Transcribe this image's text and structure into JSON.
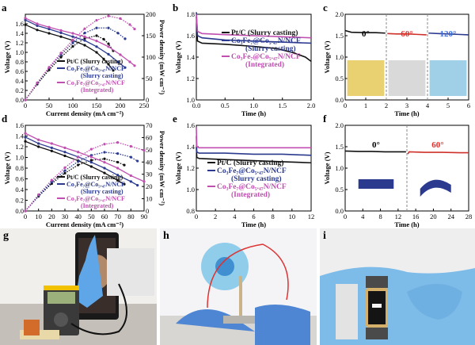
{
  "colors": {
    "black": "#111111",
    "blue": "#2b3a8f",
    "magenta": "#c04fb0",
    "red_text": "#e0302a",
    "blue_text": "#3a6ad8"
  },
  "panels": {
    "a": {
      "letter": "a"
    },
    "b": {
      "letter": "b"
    },
    "c": {
      "letter": "c"
    },
    "d": {
      "letter": "d"
    },
    "e": {
      "letter": "e"
    },
    "f": {
      "letter": "f"
    },
    "g": {
      "letter": "g"
    },
    "h": {
      "letter": "h"
    },
    "i": {
      "letter": "i"
    }
  },
  "chart_data": [
    {
      "id": "a",
      "type": "line",
      "xlabel": "Current density (mA cm⁻²)",
      "ylabel": "Voltage (V)",
      "y2label": "Power density (mW cm⁻²)",
      "xlim": [
        0,
        250
      ],
      "ylim": [
        0,
        1.8
      ],
      "y2lim": [
        0,
        200
      ],
      "xticks": [
        "0",
        "50",
        "100",
        "150",
        "200",
        "250"
      ],
      "yticks": [
        "0.0",
        "0.2",
        "0.4",
        "0.6",
        "0.8",
        "1.0",
        "1.2",
        "1.4",
        "1.6"
      ],
      "y2ticks": [
        "0",
        "50",
        "100",
        "150",
        "200"
      ],
      "legend": [
        "Pt/C (Slurry casting)",
        "Co₃Fe₇@Co₅.₄₇N/NCF",
        "(Slurry casting)",
        "Co₃Fe₇@Co₅.₄₇N/NCF",
        "(Integrated)"
      ],
      "series": [
        {
          "color": "black",
          "x": [
            0,
            25,
            50,
            75,
            100,
            125,
            150,
            165,
            175,
            185
          ],
          "voltage": [
            1.58,
            1.47,
            1.4,
            1.33,
            1.25,
            1.15,
            1.0,
            0.86,
            0.75,
            0.62
          ]
        },
        {
          "color": "blue",
          "x": [
            0,
            25,
            50,
            75,
            100,
            125,
            150,
            175,
            195,
            210
          ],
          "voltage": [
            1.68,
            1.56,
            1.49,
            1.41,
            1.33,
            1.25,
            1.12,
            0.96,
            0.8,
            0.68
          ]
        },
        {
          "color": "magenta",
          "x": [
            0,
            25,
            50,
            75,
            100,
            125,
            150,
            175,
            200,
            220,
            230
          ],
          "voltage": [
            1.72,
            1.6,
            1.53,
            1.46,
            1.4,
            1.33,
            1.24,
            1.12,
            0.95,
            0.8,
            0.72
          ]
        }
      ]
    },
    {
      "id": "b",
      "type": "line",
      "xlabel": "Time (h)",
      "ylabel": "Voltage (V)",
      "xlim": [
        0,
        2.0
      ],
      "ylim": [
        1.0,
        1.8
      ],
      "xticks": [
        "0.0",
        "0.5",
        "1.0",
        "1.5",
        "2.0"
      ],
      "yticks": [
        "1.0",
        "1.2",
        "1.4",
        "1.6",
        "1.8"
      ],
      "legend": [
        "Pt/C (Slurry casting)",
        "Co₃Fe₇@Co₅.₄₇N/NCF",
        "(Slurry casting)",
        "Co₃Fe₇@Co₅.₄₇N/NCF",
        "(Integrated)"
      ],
      "series": [
        {
          "color": "black",
          "x": [
            0,
            0.02,
            0.1,
            0.5,
            1.0,
            1.4,
            1.7,
            1.9,
            2.0
          ],
          "y": [
            1.78,
            1.55,
            1.53,
            1.52,
            1.5,
            1.48,
            1.44,
            1.4,
            1.36
          ]
        },
        {
          "color": "blue",
          "x": [
            0,
            0.02,
            0.1,
            0.5,
            1.0,
            1.5,
            2.0
          ],
          "y": [
            1.82,
            1.6,
            1.58,
            1.56,
            1.55,
            1.54,
            1.53
          ]
        },
        {
          "color": "magenta",
          "x": [
            0,
            0.02,
            0.1,
            0.5,
            1.0,
            1.5,
            2.0
          ],
          "y": [
            1.8,
            1.64,
            1.62,
            1.61,
            1.6,
            1.59,
            1.58
          ]
        }
      ]
    },
    {
      "id": "c",
      "type": "line",
      "xlabel": "Time (h)",
      "ylabel": "Voltage (V)",
      "xlim": [
        0,
        6
      ],
      "ylim": [
        0.0,
        2.0
      ],
      "xticks": [
        "0",
        "1",
        "2",
        "3",
        "4",
        "5",
        "6"
      ],
      "yticks": [
        "0.0",
        "0.5",
        "1.0",
        "1.5",
        "2.0"
      ],
      "annotations": [
        "0°",
        "60°",
        "120°"
      ],
      "series": [
        {
          "color": "black",
          "x": [
            0,
            0.3,
            1,
            1.5,
            1.95
          ],
          "y": [
            1.62,
            1.58,
            1.57,
            1.57,
            1.56
          ]
        },
        {
          "color": "red",
          "x": [
            2.05,
            2.5,
            3,
            3.5,
            3.95
          ],
          "y": [
            1.55,
            1.54,
            1.54,
            1.53,
            1.52
          ]
        },
        {
          "color": "blue",
          "x": [
            4.05,
            4.5,
            5,
            5.5,
            6
          ],
          "y": [
            1.56,
            1.55,
            1.54,
            1.53,
            1.52
          ]
        }
      ],
      "separators": [
        2,
        4
      ]
    },
    {
      "id": "d",
      "type": "line",
      "xlabel": "Current density (mA cm⁻²)",
      "ylabel": "Voltage (V)",
      "y2label": "Power density (mW cm⁻²)",
      "xlim": [
        0,
        90
      ],
      "ylim": [
        0,
        1.6
      ],
      "y2lim": [
        0,
        70
      ],
      "xticks": [
        "0",
        "10",
        "20",
        "30",
        "40",
        "50",
        "60",
        "70",
        "80",
        "90"
      ],
      "yticks": [
        "0.0",
        "0.2",
        "0.4",
        "0.6",
        "0.8",
        "1.0",
        "1.2",
        "1.4",
        "1.6"
      ],
      "y2ticks": [
        "0",
        "10",
        "20",
        "30",
        "40",
        "50",
        "60",
        "70"
      ],
      "legend": [
        "Pt/C (Slurry casting)",
        "Co₃Fe₇@Co₅.₄₇N/NCF",
        "(Slurry casting)",
        "Co₃Fe₇@Co₅.₄₇N/NCF",
        "(Integrated)"
      ],
      "series": [
        {
          "color": "black",
          "x": [
            0,
            10,
            20,
            30,
            40,
            50,
            60,
            70,
            75
          ],
          "voltage": [
            1.3,
            1.2,
            1.12,
            1.03,
            0.94,
            0.83,
            0.71,
            0.57,
            0.5
          ]
        },
        {
          "color": "blue",
          "x": [
            0,
            10,
            20,
            30,
            40,
            50,
            60,
            70,
            80,
            85
          ],
          "voltage": [
            1.38,
            1.26,
            1.18,
            1.1,
            1.01,
            0.91,
            0.8,
            0.67,
            0.55,
            0.48
          ]
        },
        {
          "color": "magenta",
          "x": [
            0,
            10,
            20,
            30,
            40,
            50,
            60,
            70,
            80,
            90
          ],
          "voltage": [
            1.45,
            1.33,
            1.26,
            1.18,
            1.1,
            1.01,
            0.91,
            0.8,
            0.66,
            0.55
          ]
        }
      ]
    },
    {
      "id": "e",
      "type": "line",
      "xlabel": "Time (h)",
      "ylabel": "Voltage (V)",
      "xlim": [
        0,
        12
      ],
      "ylim": [
        0.8,
        1.6
      ],
      "xticks": [
        "0",
        "2",
        "4",
        "6",
        "8",
        "10",
        "12"
      ],
      "yticks": [
        "0.8",
        "1.0",
        "1.2",
        "1.4",
        "1.6"
      ],
      "legend": [
        "Pt/C (Slurry casting)",
        "Co₃Fe₇@Co₅.₄₇N/NCF",
        "(Slurry casting)",
        "Co₃Fe₇@Co₅.₄₇N/NCF",
        "(Integrated)"
      ],
      "series": [
        {
          "color": "black",
          "x": [
            0,
            0.05,
            0.3,
            3,
            6,
            9,
            12
          ],
          "y": [
            1.4,
            1.3,
            1.29,
            1.28,
            1.27,
            1.26,
            1.25
          ]
        },
        {
          "color": "blue",
          "x": [
            0,
            0.05,
            0.3,
            3,
            6,
            9,
            12
          ],
          "y": [
            1.5,
            1.35,
            1.34,
            1.34,
            1.33,
            1.33,
            1.32
          ]
        },
        {
          "color": "magenta",
          "x": [
            0,
            0.05,
            0.3,
            3,
            6,
            9,
            12
          ],
          "y": [
            1.58,
            1.4,
            1.39,
            1.39,
            1.39,
            1.39,
            1.39
          ]
        }
      ]
    },
    {
      "id": "f",
      "type": "line",
      "xlabel": "Time (h)",
      "ylabel": "Voltage (V)",
      "xlim": [
        0,
        28
      ],
      "ylim": [
        0.0,
        2.0
      ],
      "xticks": [
        "0",
        "4",
        "8",
        "12",
        "16",
        "20",
        "24",
        "28"
      ],
      "yticks": [
        "0.0",
        "0.5",
        "1.0",
        "1.5",
        "2.0"
      ],
      "annotations": [
        "0°",
        "60°"
      ],
      "series": [
        {
          "color": "black",
          "x": [
            0,
            3,
            6,
            9,
            12,
            13.8
          ],
          "y": [
            1.4,
            1.39,
            1.39,
            1.38,
            1.38,
            1.38
          ]
        },
        {
          "color": "red",
          "x": [
            14.2,
            14.5,
            18,
            22,
            26,
            28
          ],
          "y": [
            1.33,
            1.38,
            1.37,
            1.37,
            1.36,
            1.36
          ]
        }
      ],
      "separators": [
        14
      ]
    }
  ]
}
